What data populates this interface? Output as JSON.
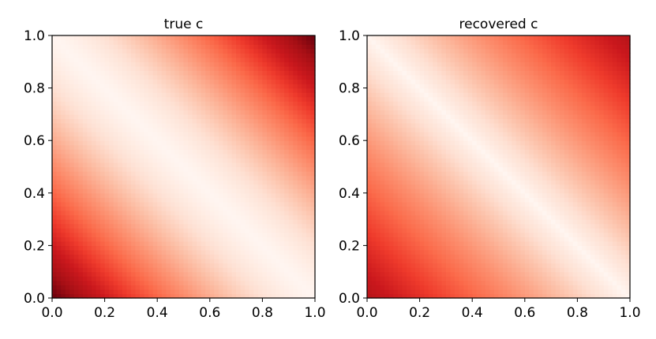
{
  "chart_data": [
    {
      "type": "heatmap",
      "title": "true c",
      "xlabel": "",
      "ylabel": "",
      "xlim": [
        0.0,
        1.0
      ],
      "ylim": [
        0.0,
        1.0
      ],
      "xticks": [
        "0.0",
        "0.2",
        "0.4",
        "0.6",
        "0.8",
        "1.0"
      ],
      "yticks": [
        "0.0",
        "0.2",
        "0.4",
        "0.6",
        "0.8",
        "1.0"
      ],
      "colormap": "Reds",
      "grid": false,
      "field": "intensity highest at (0,0) and (1,1), lowest along the anti-diagonal x + y = 1",
      "peak_level": 1.0,
      "falloff": 1.3
    },
    {
      "type": "heatmap",
      "title": "recovered c",
      "xlabel": "",
      "ylabel": "",
      "xlim": [
        0.0,
        1.0
      ],
      "ylim": [
        0.0,
        1.0
      ],
      "xticks": [
        "0.0",
        "0.2",
        "0.4",
        "0.6",
        "0.8",
        "1.0"
      ],
      "yticks": [
        "0.0",
        "0.2",
        "0.4",
        "0.6",
        "0.8",
        "1.0"
      ],
      "colormap": "Reds",
      "grid": false,
      "field": "intensity highest near the corners (0,0) and (1,1), lowest along the anti-diagonal x + y = 1, with a broader high region than the true field",
      "peak_level": 0.82,
      "falloff": 0.9
    }
  ],
  "colors": {
    "reds_low": "#fff5f0",
    "reds_mid": "#fb6a4a",
    "reds_high": "#67000d",
    "axis": "#000000"
  }
}
